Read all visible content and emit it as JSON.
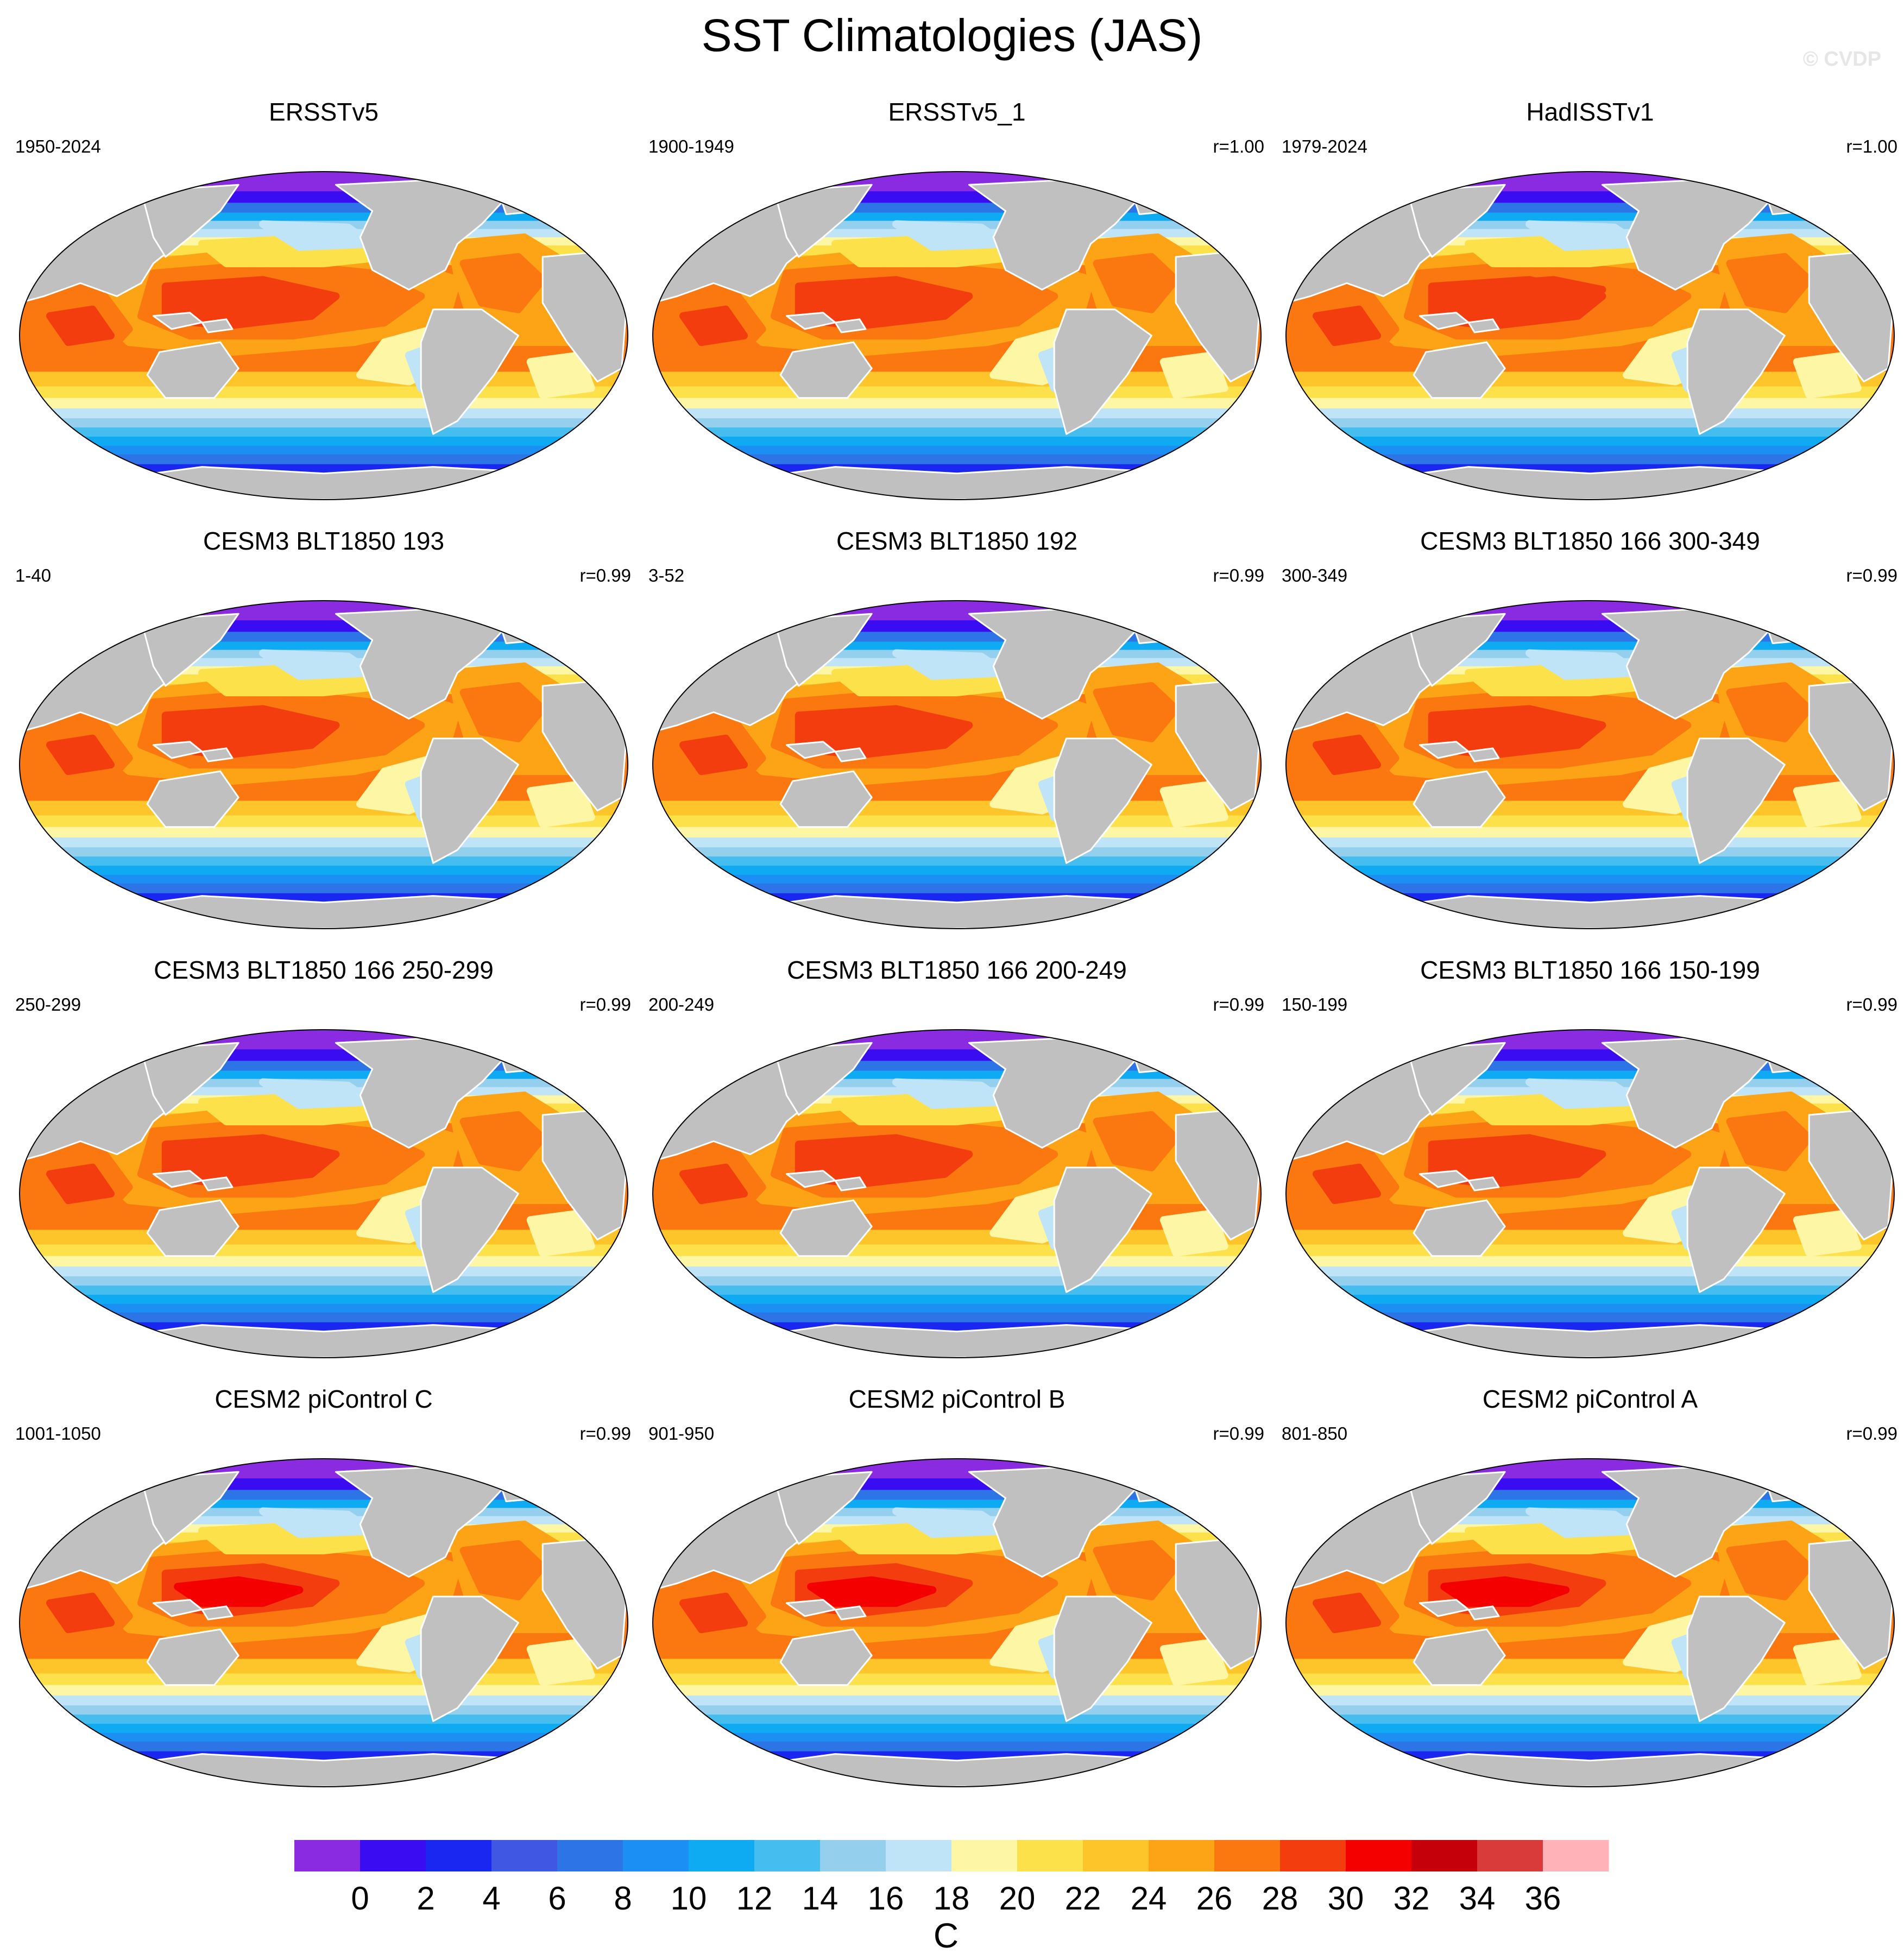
{
  "title": "SST Climatologies (JAS)",
  "watermark": "© CVDP",
  "panels": [
    {
      "title": "ERSSTv5",
      "period": "1950-2024",
      "corr": "",
      "variant": "obs"
    },
    {
      "title": "ERSSTv5_1",
      "period": "1900-1949",
      "corr": "r=1.00",
      "variant": "obs"
    },
    {
      "title": "HadISSTv1",
      "period": "1979-2024",
      "corr": "r=1.00",
      "variant": "obs2"
    },
    {
      "title": "CESM3 BLT1850 193",
      "period": "1-40",
      "corr": "r=0.99",
      "variant": "cesm3"
    },
    {
      "title": "CESM3 BLT1850 192",
      "period": "3-52",
      "corr": "r=0.99",
      "variant": "cesm3"
    },
    {
      "title": "CESM3 BLT1850 166 300-349",
      "period": "300-349",
      "corr": "r=0.99",
      "variant": "cesm3"
    },
    {
      "title": "CESM3 BLT1850 166 250-299",
      "period": "250-299",
      "corr": "r=0.99",
      "variant": "cesm3"
    },
    {
      "title": "CESM3 BLT1850 166 200-249",
      "period": "200-249",
      "corr": "r=0.99",
      "variant": "cesm3"
    },
    {
      "title": "CESM3 BLT1850 166 150-199",
      "period": "150-199",
      "corr": "r=0.99",
      "variant": "cesm3"
    },
    {
      "title": "CESM2 piControl C",
      "period": "1001-1050",
      "corr": "r=0.99",
      "variant": "cesm2"
    },
    {
      "title": "CESM2 piControl B",
      "period": "901-950",
      "corr": "r=0.99",
      "variant": "cesm2"
    },
    {
      "title": "CESM2 piControl A",
      "period": "801-850",
      "corr": "r=0.99",
      "variant": "cesm2"
    }
  ],
  "colorbar": {
    "units": "C",
    "labels": [
      "0",
      "2",
      "4",
      "6",
      "8",
      "10",
      "12",
      "14",
      "16",
      "18",
      "20",
      "22",
      "24",
      "26",
      "28",
      "30",
      "32",
      "34",
      "36"
    ],
    "colors": [
      "#8a2be2",
      "#3a0cf2",
      "#1a27f0",
      "#3f57e2",
      "#2d75e6",
      "#1c8ff5",
      "#0eabf2",
      "#45bdee",
      "#95cfee",
      "#bfe3f7",
      "#fdf6a5",
      "#fde14a",
      "#fdc52a",
      "#fca316",
      "#fb770f",
      "#f33d0e",
      "#f40000",
      "#c6000a",
      "#d93a3a",
      "#ffb3b8"
    ]
  },
  "land_color": "#c0c0c0"
}
